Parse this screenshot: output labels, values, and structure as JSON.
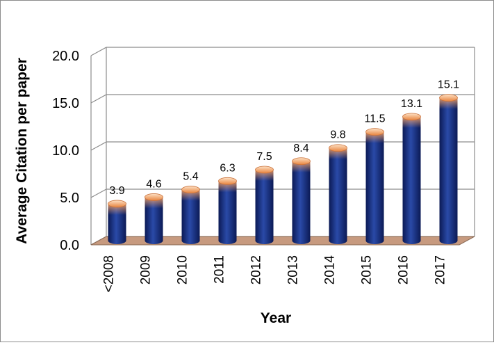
{
  "chart_data": {
    "type": "bar",
    "title": "",
    "xlabel": "Year",
    "ylabel": "Average Citation per paper",
    "categories": [
      "<2008",
      "2009",
      "2010",
      "2011",
      "2012",
      "2013",
      "2014",
      "2015",
      "2016",
      "2017"
    ],
    "values": [
      3.9,
      4.6,
      5.4,
      6.3,
      7.5,
      8.4,
      9.8,
      11.5,
      13.1,
      15.1
    ],
    "data_labels": [
      "3.9",
      "4.6",
      "5.4",
      "6.3",
      "7.5",
      "8.4",
      "9.8",
      "11.5",
      "13.1",
      "15.1"
    ],
    "y_ticks": [
      "0.0",
      "5.0",
      "10.0",
      "15.0",
      "20.0"
    ],
    "ylim": [
      0,
      20
    ],
    "grid": true,
    "style": "3d-cylinder",
    "colors": {
      "bar": "#1f3a8a",
      "bar_dark": "#0b1a55",
      "cap": "#f4a46a",
      "floor": "#c79a7f",
      "grid": "#8c8c8c"
    }
  }
}
